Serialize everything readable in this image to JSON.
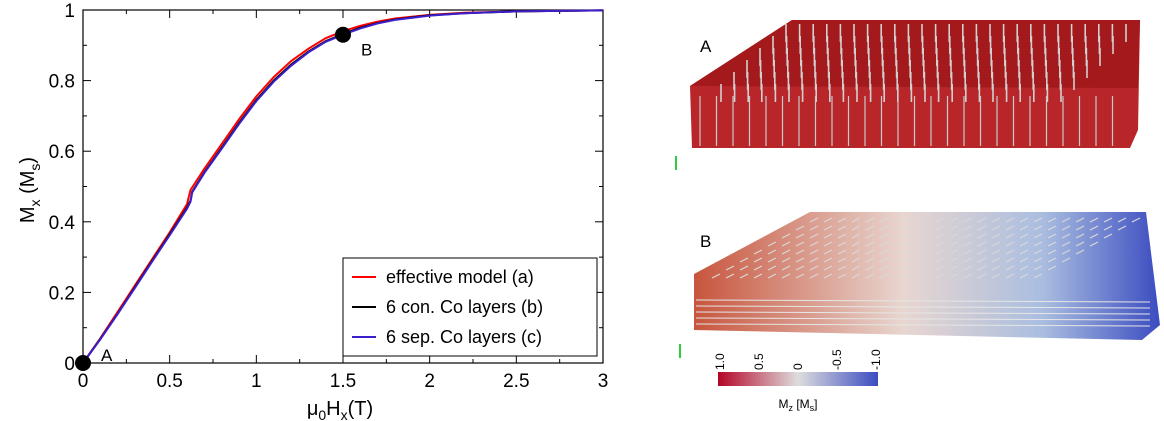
{
  "chart_data": {
    "type": "line",
    "xlabel": "μ0Hx(T)",
    "xlabel_parts": {
      "mu": "μ",
      "mu_sub": "0",
      "h": "H",
      "h_sub": "x",
      "unit": "(T)"
    },
    "ylabel": "Mx (Ms)",
    "ylabel_parts": {
      "m": "M",
      "m_sub": "x",
      "unit_open": " (M",
      "unit_sub": "s",
      "unit_close": ")"
    },
    "xlim": [
      0,
      3
    ],
    "ylim": [
      0,
      1
    ],
    "xticks": [
      0,
      0.5,
      1,
      1.5,
      2,
      2.5,
      3
    ],
    "xtick_labels": [
      "0",
      "0.5",
      "1",
      "1.5",
      "2",
      "2.5",
      "3"
    ],
    "yticks": [
      0,
      0.2,
      0.4,
      0.6,
      0.8,
      1
    ],
    "ytick_labels": [
      "0",
      "0.2",
      "0.4",
      "0.6",
      "0.8",
      "1"
    ],
    "legend_position": "bottom-right",
    "series": [
      {
        "name": "effective model (a)",
        "color": "#ff0000",
        "x": [
          0,
          0.1,
          0.2,
          0.3,
          0.4,
          0.5,
          0.6,
          0.61,
          0.62,
          0.7,
          0.8,
          0.9,
          1.0,
          1.1,
          1.2,
          1.3,
          1.4,
          1.5,
          1.6,
          1.7,
          1.8,
          2.0,
          2.2,
          2.5,
          2.8,
          3.0
        ],
        "y": [
          0,
          0.07,
          0.145,
          0.22,
          0.295,
          0.37,
          0.45,
          0.47,
          0.49,
          0.55,
          0.62,
          0.69,
          0.755,
          0.81,
          0.855,
          0.89,
          0.92,
          0.94,
          0.955,
          0.967,
          0.976,
          0.986,
          0.992,
          0.996,
          0.998,
          0.999
        ]
      },
      {
        "name": "6 con. Co layers (b)",
        "color": "#000000",
        "x": [
          0,
          0.1,
          0.2,
          0.3,
          0.4,
          0.5,
          0.6,
          0.62,
          0.63,
          0.7,
          0.8,
          0.9,
          1.0,
          1.1,
          1.2,
          1.3,
          1.4,
          1.5,
          1.6,
          1.7,
          1.8,
          2.0,
          2.2,
          2.5,
          2.8,
          3.0
        ],
        "y": [
          0,
          0.068,
          0.14,
          0.215,
          0.29,
          0.365,
          0.44,
          0.46,
          0.485,
          0.54,
          0.61,
          0.68,
          0.745,
          0.8,
          0.845,
          0.882,
          0.912,
          0.932,
          0.95,
          0.963,
          0.973,
          0.985,
          0.991,
          0.996,
          0.998,
          0.999
        ]
      },
      {
        "name": "6 sep. Co layers (c)",
        "color": "#3b1fcc",
        "x": [
          0,
          0.1,
          0.2,
          0.3,
          0.4,
          0.5,
          0.6,
          0.62,
          0.63,
          0.7,
          0.8,
          0.9,
          1.0,
          1.1,
          1.2,
          1.3,
          1.4,
          1.5,
          1.6,
          1.7,
          1.8,
          2.0,
          2.2,
          2.5,
          2.8,
          3.0
        ],
        "y": [
          0,
          0.067,
          0.139,
          0.213,
          0.288,
          0.362,
          0.437,
          0.457,
          0.483,
          0.538,
          0.607,
          0.677,
          0.742,
          0.797,
          0.842,
          0.88,
          0.91,
          0.93,
          0.948,
          0.962,
          0.972,
          0.984,
          0.991,
          0.996,
          0.998,
          0.999
        ]
      }
    ],
    "points": [
      {
        "label": "A",
        "x": 0,
        "y": 0
      },
      {
        "label": "B",
        "x": 1.5,
        "y": 0.93
      }
    ]
  },
  "panels": {
    "top": {
      "label": "A"
    },
    "bottom": {
      "label": "B"
    }
  },
  "colorbar": {
    "ticks": [
      "1.0",
      "0.5",
      "0",
      "-0.5",
      "-1.0"
    ],
    "title_m": "M",
    "title_sub": "z",
    "title_unit": " [M",
    "title_unit_sub": "s",
    "title_close": "]",
    "color_high": "#b40426",
    "color_mid": "#dddddd",
    "color_low": "#3b4cc0"
  }
}
